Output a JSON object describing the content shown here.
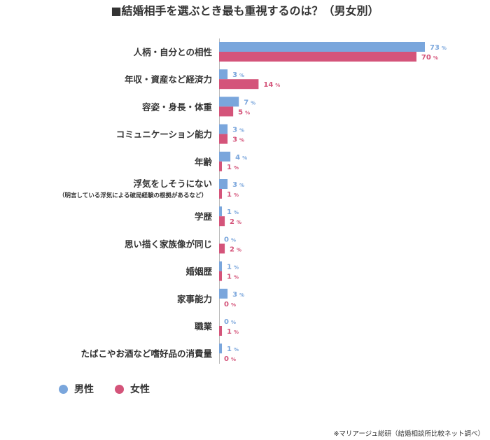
{
  "chart_data": {
    "type": "bar",
    "orientation": "horizontal",
    "title": "■結婚相手を選ぶとき最も重視するのは？（男女別）",
    "categories": [
      {
        "label": "人柄・自分との相性",
        "sublabel": ""
      },
      {
        "label": "年収・資産など経済力",
        "sublabel": ""
      },
      {
        "label": "容姿・身長・体重",
        "sublabel": ""
      },
      {
        "label": "コミュニケーション能力",
        "sublabel": ""
      },
      {
        "label": "年齢",
        "sublabel": ""
      },
      {
        "label": "浮気をしそうにない",
        "sublabel": "（明言している浮気による破局経験の根拠があるなど）"
      },
      {
        "label": "学歴",
        "sublabel": ""
      },
      {
        "label": "思い描く家族像が同じ",
        "sublabel": ""
      },
      {
        "label": "婚姻歴",
        "sublabel": ""
      },
      {
        "label": "家事能力",
        "sublabel": ""
      },
      {
        "label": "職業",
        "sublabel": ""
      },
      {
        "label": "たばこやお酒など嗜好品の消費量",
        "sublabel": ""
      }
    ],
    "series": [
      {
        "name": "男性",
        "color": "#7aa6dc",
        "values": [
          73,
          3,
          7,
          3,
          4,
          3,
          1,
          0,
          1,
          3,
          0,
          1
        ]
      },
      {
        "name": "女性",
        "color": "#d4547a",
        "values": [
          70,
          14,
          5,
          3,
          1,
          1,
          2,
          2,
          1,
          0,
          1,
          0
        ]
      }
    ],
    "unit": "%",
    "xlim": [
      0,
      73
    ],
    "grid": false,
    "legend_position": "bottom-left"
  },
  "source_note": "※マリアージュ総研（結婚相談所比較ネット調べ）"
}
